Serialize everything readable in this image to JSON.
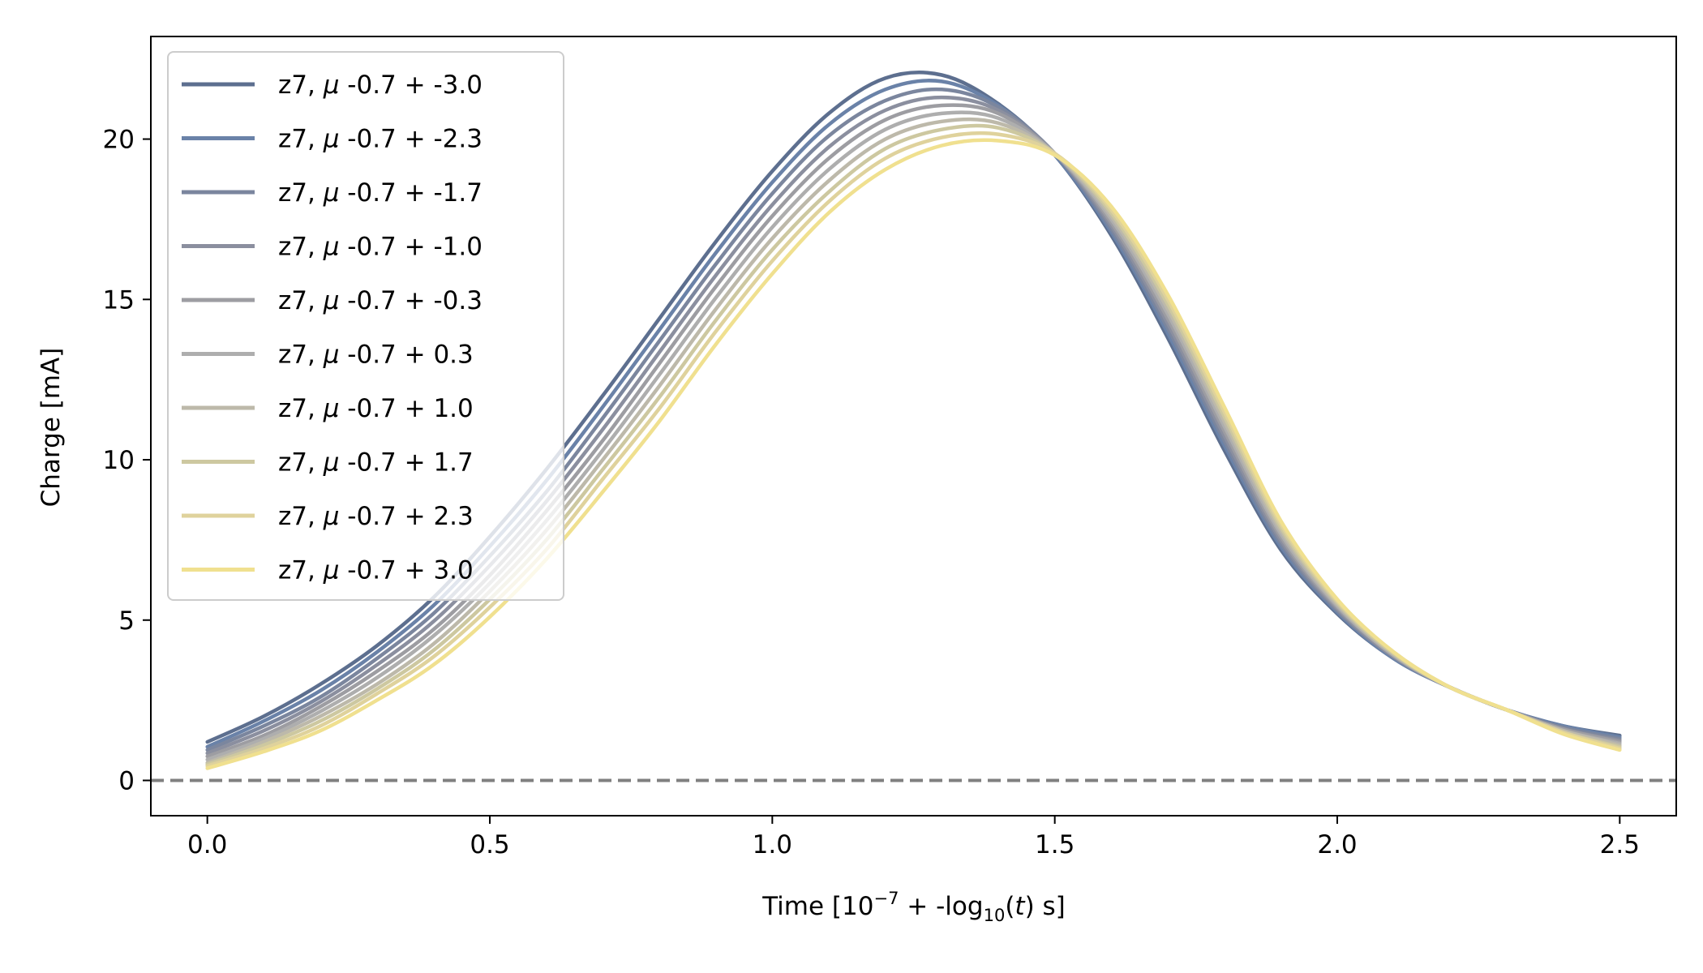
{
  "chart_data": {
    "type": "line",
    "xlabel": {
      "prefix": "Time [10",
      "sup": "−7",
      "middle": " + -log",
      "sub": "10",
      "paren_open": "(",
      "var": "t",
      "suffix": ") s]"
    },
    "ylabel": "Charge [mA]",
    "xlim": [
      -0.1,
      2.6
    ],
    "ylim": [
      -1.1,
      23.2
    ],
    "xticks": [
      0.0,
      0.5,
      1.0,
      1.5,
      2.0,
      2.5
    ],
    "xtick_labels": [
      "0.0",
      "0.5",
      "1.0",
      "1.5",
      "2.0",
      "2.5"
    ],
    "yticks": [
      0,
      5,
      10,
      15,
      20
    ],
    "ytick_labels": [
      "0",
      "5",
      "10",
      "15",
      "20"
    ],
    "grid": false,
    "legend_position": "upper-left",
    "reference_line": {
      "y": 0,
      "style": "dashed",
      "color": "#808080"
    },
    "x": [
      0.0,
      0.1,
      0.2,
      0.3,
      0.4,
      0.5,
      0.6,
      0.7,
      0.8,
      0.9,
      1.0,
      1.1,
      1.2,
      1.3,
      1.4,
      1.5,
      1.6,
      1.7,
      1.8,
      1.9,
      2.0,
      2.1,
      2.2,
      2.3,
      2.4,
      2.5
    ],
    "series": [
      {
        "name_prefix": "z7, ",
        "name_mu": "μ",
        "name_suffix": " -0.7 + -3.0",
        "color": "#5d6f8f",
        "values": [
          1.2,
          2.0,
          3.0,
          4.2,
          5.7,
          7.6,
          9.7,
          12.0,
          14.4,
          16.8,
          19.0,
          20.8,
          21.9,
          22.0,
          21.1,
          19.5,
          17.0,
          13.8,
          10.3,
          7.2,
          5.2,
          3.8,
          2.9,
          2.2,
          1.7,
          1.4
        ]
      },
      {
        "name_prefix": "z7, ",
        "name_mu": "μ",
        "name_suffix": " -0.7 + -2.3",
        "color": "#6a82a8",
        "values": [
          1.05,
          1.85,
          2.8,
          4.0,
          5.45,
          7.3,
          9.35,
          11.65,
          14.05,
          16.45,
          18.65,
          20.45,
          21.55,
          21.8,
          21.05,
          19.5,
          17.1,
          13.95,
          10.45,
          7.3,
          5.25,
          3.8,
          2.9,
          2.2,
          1.7,
          1.35
        ]
      },
      {
        "name_prefix": "z7, ",
        "name_mu": "μ",
        "name_suffix": " -0.7 + -1.7",
        "color": "#7b869e",
        "values": [
          0.95,
          1.7,
          2.6,
          3.8,
          5.2,
          7.0,
          9.0,
          11.3,
          13.7,
          16.1,
          18.3,
          20.1,
          21.2,
          21.55,
          21.0,
          19.55,
          17.2,
          14.1,
          10.6,
          7.4,
          5.3,
          3.85,
          2.9,
          2.2,
          1.65,
          1.3
        ]
      },
      {
        "name_prefix": "z7, ",
        "name_mu": "μ",
        "name_suffix": " -0.7 + -1.0",
        "color": "#8b8f9f",
        "values": [
          0.85,
          1.55,
          2.45,
          3.6,
          4.95,
          6.7,
          8.7,
          10.95,
          13.35,
          15.75,
          17.95,
          19.75,
          20.9,
          21.3,
          20.9,
          19.55,
          17.3,
          14.25,
          10.75,
          7.5,
          5.35,
          3.85,
          2.9,
          2.2,
          1.6,
          1.25
        ]
      },
      {
        "name_prefix": "z7, ",
        "name_mu": "μ",
        "name_suffix": " -0.7 + -0.3",
        "color": "#9d9da2",
        "values": [
          0.75,
          1.4,
          2.3,
          3.4,
          4.7,
          6.4,
          8.4,
          10.6,
          13.0,
          15.4,
          17.6,
          19.4,
          20.6,
          21.05,
          20.8,
          19.55,
          17.4,
          14.4,
          10.9,
          7.6,
          5.4,
          3.9,
          2.9,
          2.2,
          1.6,
          1.2
        ]
      },
      {
        "name_prefix": "z7, ",
        "name_mu": "μ",
        "name_suffix": " -0.7 + 0.3",
        "color": "#aeaeae",
        "values": [
          0.65,
          1.3,
          2.15,
          3.2,
          4.5,
          6.15,
          8.1,
          10.3,
          12.65,
          15.05,
          17.25,
          19.05,
          20.3,
          20.8,
          20.65,
          19.55,
          17.5,
          14.55,
          11.05,
          7.7,
          5.45,
          3.9,
          2.9,
          2.2,
          1.55,
          1.15
        ]
      },
      {
        "name_prefix": "z7, ",
        "name_mu": "μ",
        "name_suffix": " -0.7 + 1.0",
        "color": "#bdb9aa",
        "values": [
          0.55,
          1.2,
          2.0,
          3.0,
          4.25,
          5.9,
          7.8,
          10.0,
          12.3,
          14.7,
          16.9,
          18.7,
          20.0,
          20.55,
          20.5,
          19.55,
          17.6,
          14.7,
          11.2,
          7.8,
          5.5,
          3.95,
          2.9,
          2.2,
          1.55,
          1.1
        ]
      },
      {
        "name_prefix": "z7, ",
        "name_mu": "μ",
        "name_suffix": " -0.7 + 1.7",
        "color": "#cdc8a0",
        "values": [
          0.5,
          1.1,
          1.85,
          2.85,
          4.05,
          5.65,
          7.5,
          9.7,
          11.95,
          14.35,
          16.55,
          18.35,
          19.7,
          20.3,
          20.35,
          19.55,
          17.7,
          14.85,
          11.35,
          7.9,
          5.55,
          3.95,
          2.9,
          2.2,
          1.5,
          1.05
        ]
      },
      {
        "name_prefix": "z7, ",
        "name_mu": "μ",
        "name_suffix": " -0.7 + 2.3",
        "color": "#dfd29c",
        "values": [
          0.45,
          1.0,
          1.7,
          2.7,
          3.85,
          5.4,
          7.2,
          9.4,
          11.6,
          14.0,
          16.2,
          18.05,
          19.4,
          20.05,
          20.15,
          19.55,
          17.8,
          15.0,
          11.5,
          8.0,
          5.6,
          4.0,
          2.9,
          2.2,
          1.5,
          1.0
        ]
      },
      {
        "name_prefix": "z7, ",
        "name_mu": "μ",
        "name_suffix": " -0.7 + 3.0",
        "color": "#f0e08f",
        "values": [
          0.38,
          0.9,
          1.55,
          2.5,
          3.6,
          5.1,
          6.9,
          9.0,
          11.2,
          13.6,
          15.8,
          17.7,
          19.05,
          19.8,
          19.95,
          19.5,
          17.9,
          15.15,
          11.65,
          8.1,
          5.65,
          4.0,
          2.9,
          2.2,
          1.45,
          0.95
        ]
      }
    ]
  }
}
